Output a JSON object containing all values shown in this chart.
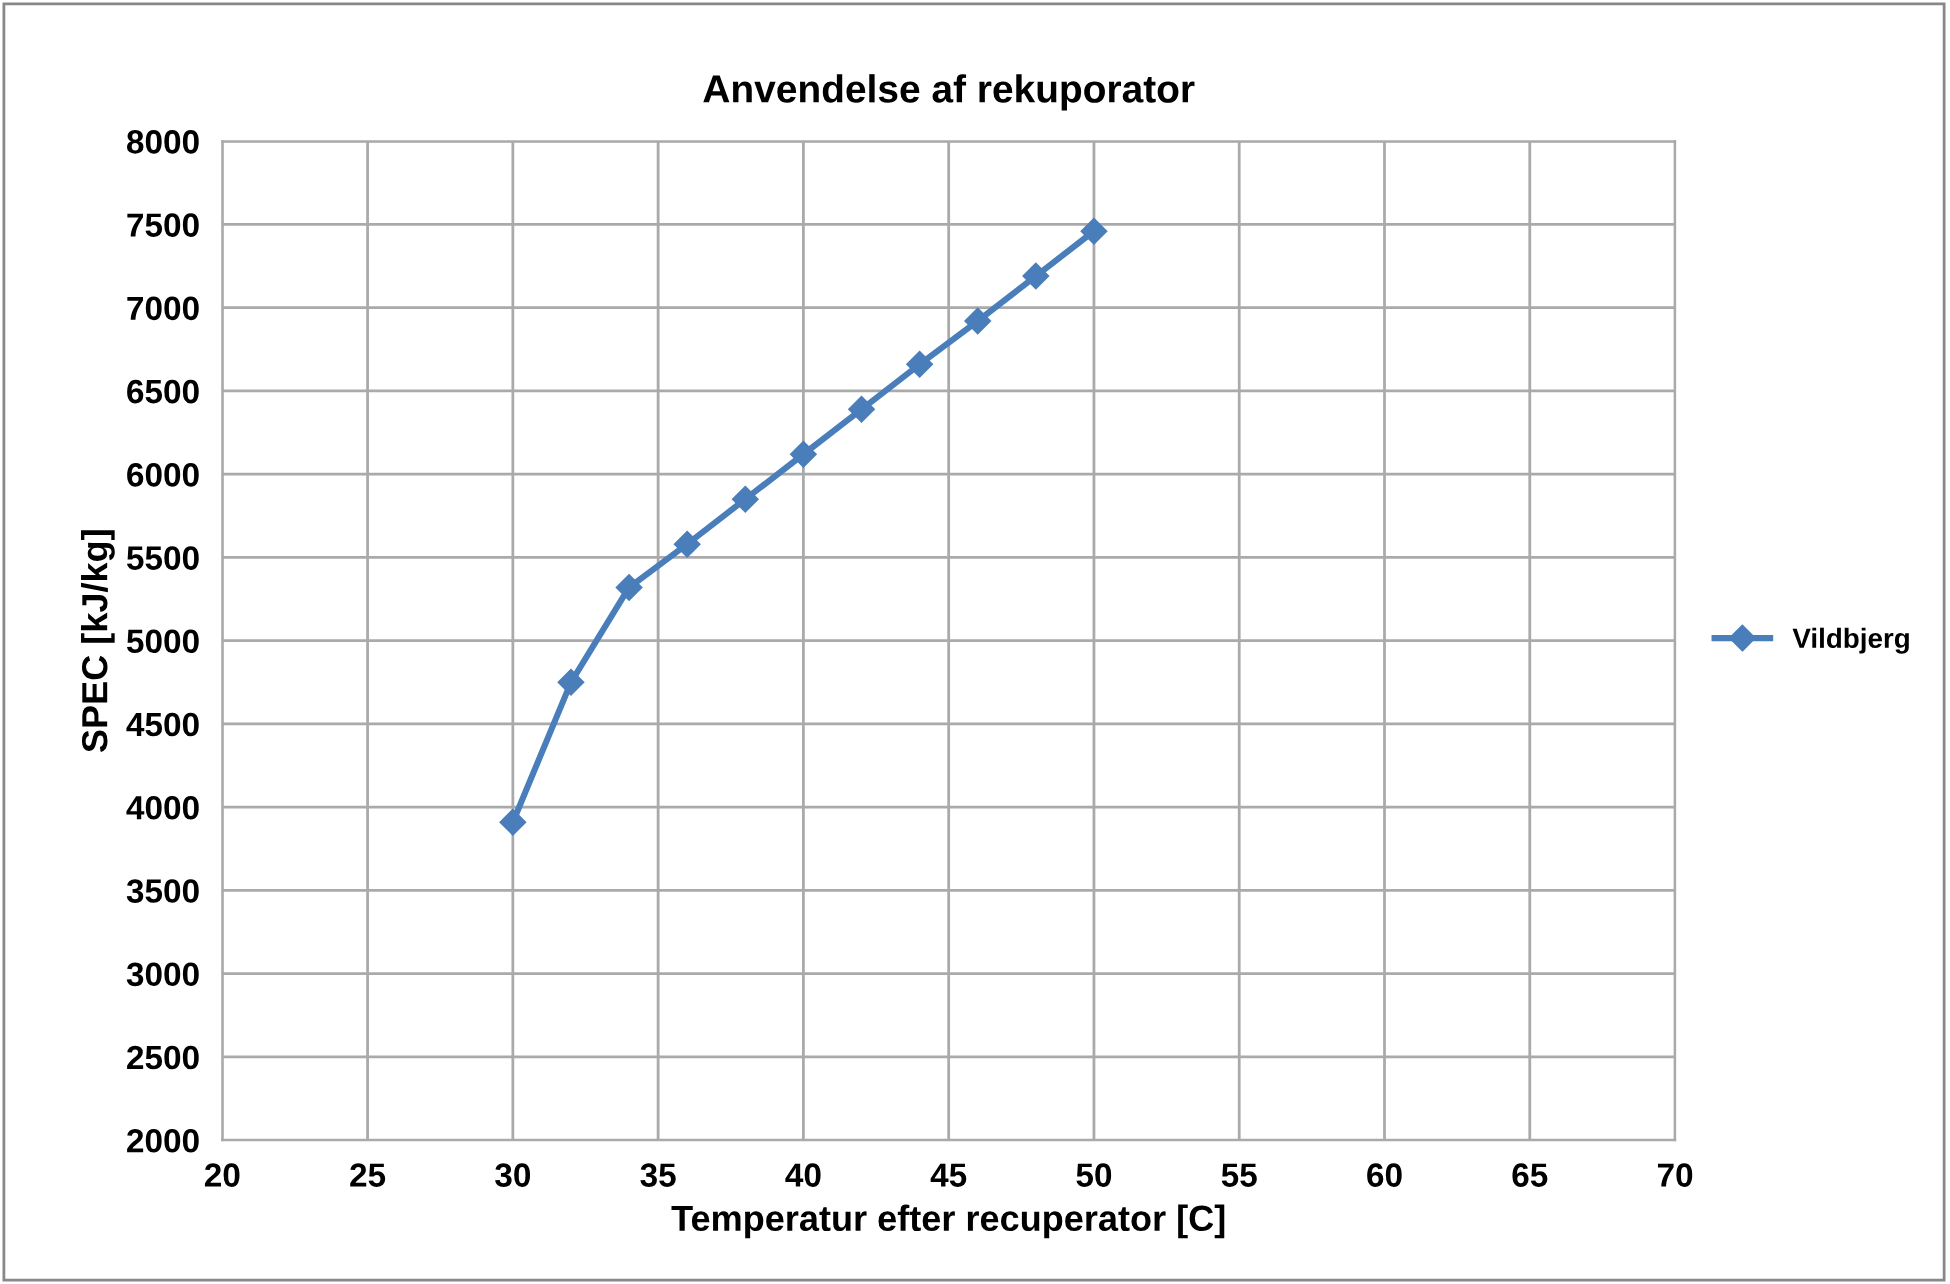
{
  "chart_data": {
    "type": "line",
    "title": "Anvendelse af rekuporator",
    "xlabel": "Temperatur efter recuperator [C]",
    "ylabel": "SPEC [kJ/kg]",
    "x": [
      30,
      32,
      34,
      36,
      38,
      40,
      42,
      44,
      46,
      48,
      50
    ],
    "series": [
      {
        "name": "Vildbjerg",
        "color": "#4a7ebb",
        "values": [
          3910,
          4750,
          5320,
          5580,
          5850,
          6120,
          6390,
          6660,
          6920,
          7190,
          7460
        ]
      }
    ],
    "xlim": [
      20,
      70
    ],
    "xticks": [
      20,
      25,
      30,
      35,
      40,
      45,
      50,
      55,
      60,
      65,
      70
    ],
    "ylim": [
      2000,
      8000
    ],
    "yticks": [
      2000,
      2500,
      3000,
      3500,
      4000,
      4500,
      5000,
      5500,
      6000,
      6500,
      7000,
      7500,
      8000
    ],
    "grid": true,
    "legend": "right",
    "marker": "diamond",
    "line_style": "solid"
  }
}
